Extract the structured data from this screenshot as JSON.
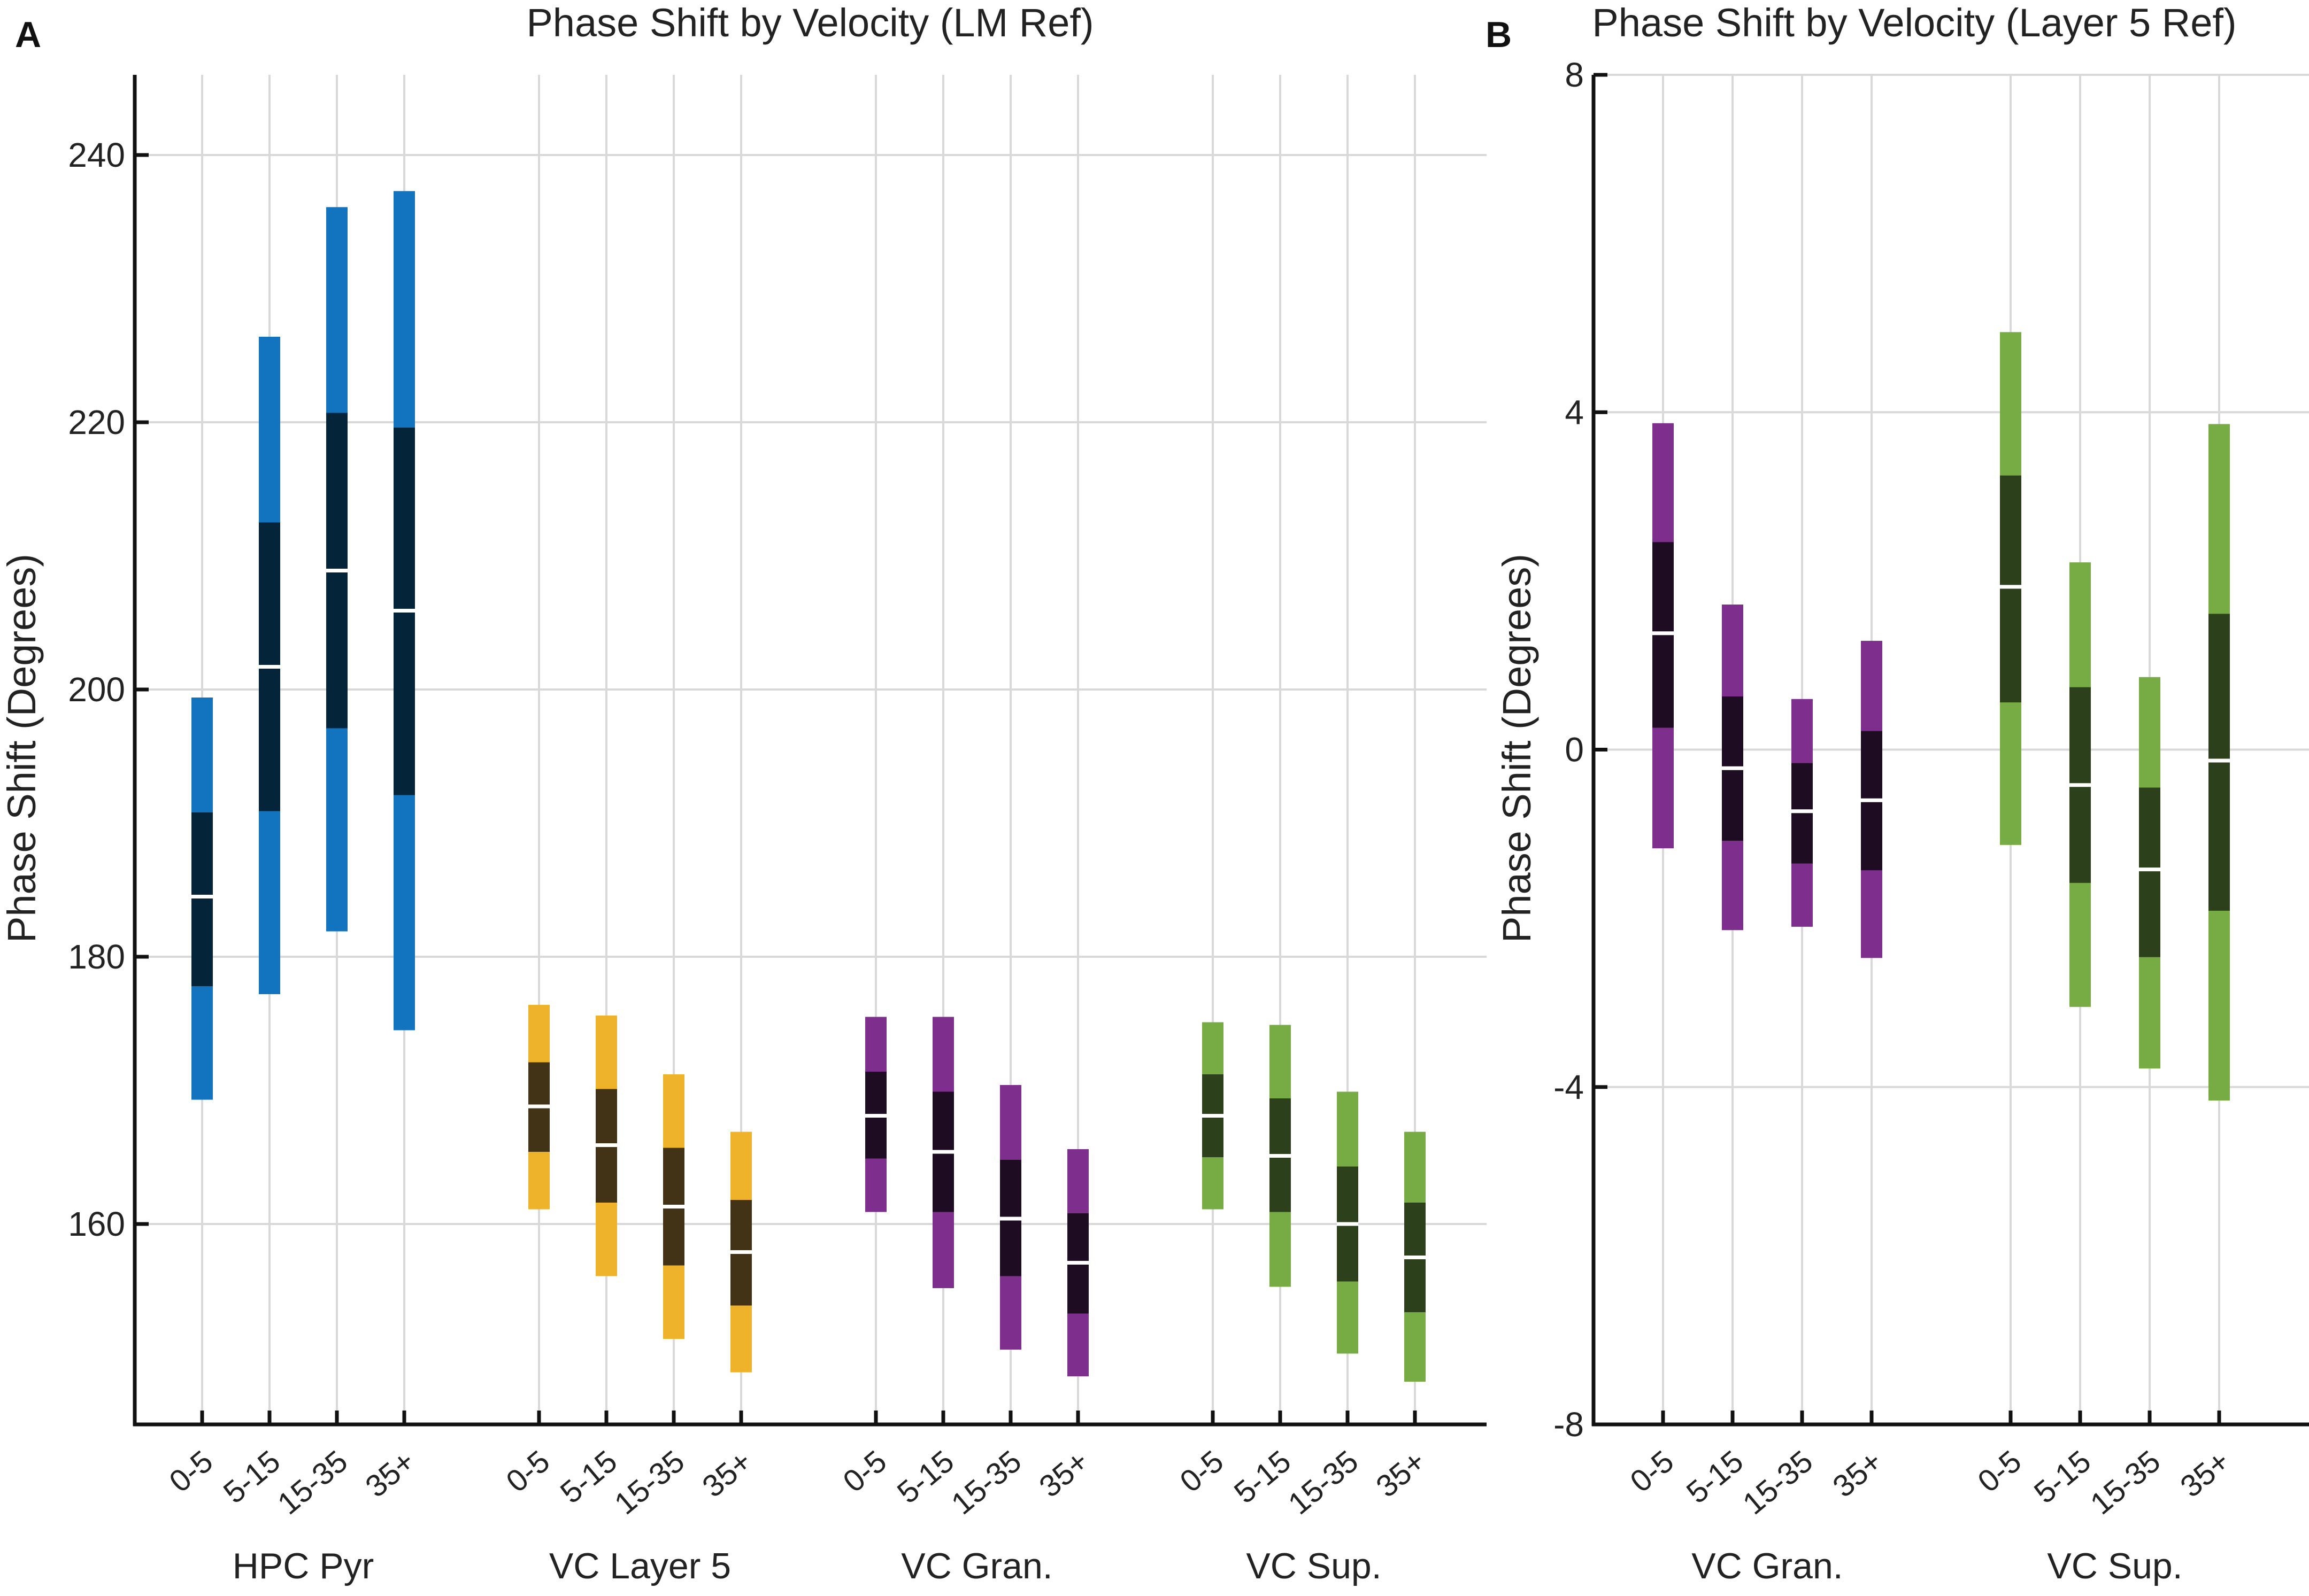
{
  "chart_data": [
    {
      "panel": "A",
      "type": "bar",
      "subtype": "interval-bars",
      "title": "Phase Shift by Velocity (LM Ref)",
      "xlabel": "",
      "ylabel": "Phase Shift (Degrees)",
      "ylim": [
        145,
        246
      ],
      "yticks": [
        160,
        180,
        200,
        220,
        240
      ],
      "ytick_labels": [
        "160",
        "180",
        "200",
        "220",
        "240"
      ],
      "grid": true,
      "groups": [
        {
          "label": "HPC Pyr",
          "color": "#1273be",
          "dark_color": "#04243a",
          "bars": [
            {
              "category": "0-5",
              "low": 169.3,
              "q1": 177.8,
              "median": 184.5,
              "q3": 190.8,
              "high": 199.4
            },
            {
              "category": "5-15",
              "low": 177.2,
              "q1": 190.9,
              "median": 201.7,
              "q3": 212.5,
              "high": 226.4
            },
            {
              "category": "15-35",
              "low": 181.9,
              "q1": 197.1,
              "median": 208.9,
              "q3": 220.7,
              "high": 236.1
            },
            {
              "category": "35+",
              "low": 174.5,
              "q1": 192.1,
              "median": 205.9,
              "q3": 219.6,
              "high": 237.3
            }
          ]
        },
        {
          "label": "VC Layer 5",
          "color": "#eeb22b",
          "dark_color": "#433316",
          "bars": [
            {
              "category": "0-5",
              "low": 161.1,
              "q1": 165.4,
              "median": 168.8,
              "q3": 172.1,
              "high": 176.4
            },
            {
              "category": "5-15",
              "low": 156.1,
              "q1": 161.6,
              "median": 165.9,
              "q3": 170.1,
              "high": 175.6
            },
            {
              "category": "15-35",
              "low": 151.4,
              "q1": 156.9,
              "median": 161.3,
              "q3": 165.7,
              "high": 171.2
            },
            {
              "category": "35+",
              "low": 148.9,
              "q1": 153.9,
              "median": 157.9,
              "q3": 161.8,
              "high": 166.9
            }
          ]
        },
        {
          "label": "VC Gran.",
          "color": "#7e2f8e",
          "dark_color": "#1e0d22",
          "bars": [
            {
              "category": "0-5",
              "low": 160.9,
              "q1": 164.9,
              "median": 168.1,
              "q3": 171.4,
              "high": 175.5
            },
            {
              "category": "5-15",
              "low": 155.2,
              "q1": 160.9,
              "median": 165.4,
              "q3": 169.9,
              "high": 175.5
            },
            {
              "category": "15-35",
              "low": 150.6,
              "q1": 156.1,
              "median": 160.4,
              "q3": 164.8,
              "high": 170.4
            },
            {
              "category": "35+",
              "low": 148.6,
              "q1": 153.3,
              "median": 157.1,
              "q3": 160.8,
              "high": 165.6
            }
          ]
        },
        {
          "label": "VC Sup.",
          "color": "#77ac44",
          "dark_color": "#2c411b",
          "bars": [
            {
              "category": "0-5",
              "low": 161.1,
              "q1": 165.0,
              "median": 168.1,
              "q3": 171.2,
              "high": 175.1
            },
            {
              "category": "5-15",
              "low": 155.3,
              "q1": 160.9,
              "median": 165.1,
              "q3": 169.4,
              "high": 174.9
            },
            {
              "category": "15-35",
              "low": 150.3,
              "q1": 155.7,
              "median": 160.0,
              "q3": 164.3,
              "high": 169.9
            },
            {
              "category": "35+",
              "low": 148.2,
              "q1": 153.4,
              "median": 157.5,
              "q3": 161.6,
              "high": 166.9
            }
          ]
        }
      ]
    },
    {
      "panel": "B",
      "type": "bar",
      "subtype": "interval-bars",
      "title": "Phase Shift by Velocity (Layer 5 Ref)",
      "xlabel": "",
      "ylabel": "Phase Shift (Degrees)",
      "ylim": [
        -8,
        8
      ],
      "yticks": [
        -8,
        -4,
        0,
        4,
        8
      ],
      "ytick_labels": [
        "-8",
        "-4",
        "0",
        "4",
        "8"
      ],
      "grid": true,
      "groups": [
        {
          "label": "VC Gran.",
          "color": "#7e2f8e",
          "dark_color": "#1e0d22",
          "bars": [
            {
              "category": "0-5",
              "low": -1.17,
              "q1": 0.26,
              "median": 1.38,
              "q3": 2.46,
              "high": 3.87
            },
            {
              "category": "5-15",
              "low": -2.14,
              "q1": -1.08,
              "median": -0.22,
              "q3": 0.63,
              "high": 1.72
            },
            {
              "category": "15-35",
              "low": -2.1,
              "q1": -1.35,
              "median": -0.73,
              "q3": -0.16,
              "high": 0.6
            },
            {
              "category": "35+",
              "low": -2.47,
              "q1": -1.43,
              "median": -0.6,
              "q3": 0.22,
              "high": 1.29
            }
          ]
        },
        {
          "label": "VC Sup.",
          "color": "#77ac44",
          "dark_color": "#2c411b",
          "bars": [
            {
              "category": "0-5",
              "low": -1.13,
              "q1": 0.56,
              "median": 1.93,
              "q3": 3.25,
              "high": 4.95
            },
            {
              "category": "5-15",
              "low": -3.05,
              "q1": -1.58,
              "median": -0.42,
              "q3": 0.74,
              "high": 2.22
            },
            {
              "category": "15-35",
              "low": -3.78,
              "q1": -2.46,
              "median": -1.42,
              "q3": -0.45,
              "high": 0.86
            },
            {
              "category": "35+",
              "low": -4.16,
              "q1": -1.91,
              "median": -0.13,
              "q3": 1.61,
              "high": 3.86
            }
          ]
        }
      ]
    }
  ]
}
